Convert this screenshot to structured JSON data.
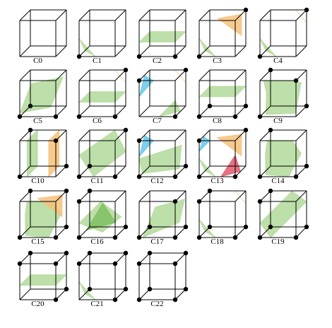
{
  "colors": {
    "green": "#b2d99a",
    "green_dark": "#7fc060",
    "orange": "#f6c17a",
    "blue": "#66c7ea",
    "red": "#e0586b",
    "vertex_edge": "#4a8a3a"
  },
  "cases": [
    {
      "label": "C0"
    },
    {
      "label": "C1"
    },
    {
      "label": "C2"
    },
    {
      "label": "C3"
    },
    {
      "label": "C4"
    },
    {
      "label": "C5"
    },
    {
      "label": "C6"
    },
    {
      "label": "C7"
    },
    {
      "label": "C8"
    },
    {
      "label": "C9"
    },
    {
      "label": "C10"
    },
    {
      "label": "C11"
    },
    {
      "label": "C12"
    },
    {
      "label": "C13"
    },
    {
      "label": "C14"
    },
    {
      "label": "C15"
    },
    {
      "label": "C16"
    },
    {
      "label": "C17"
    },
    {
      "label": "C18"
    },
    {
      "label": "C19"
    },
    {
      "label": "C20"
    },
    {
      "label": "C21"
    },
    {
      "label": "C22"
    }
  ]
}
